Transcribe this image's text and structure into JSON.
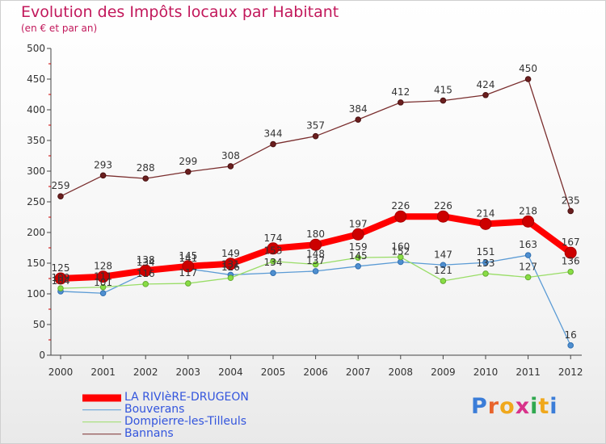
{
  "title": "Evolution des Impôts locaux par Habitant",
  "subtitle": "(en € et par an)",
  "logo": "Proxiti",
  "chart_data": {
    "type": "line",
    "title": "Evolution des Impôts locaux par Habitant",
    "subtitle": "(en € et par an)",
    "x": [
      2000,
      2001,
      2002,
      2003,
      2004,
      2005,
      2006,
      2007,
      2008,
      2009,
      2010,
      2011,
      2012
    ],
    "ylim": [
      0,
      500
    ],
    "yticks": [
      0,
      50,
      100,
      150,
      200,
      250,
      300,
      350,
      400,
      450,
      500
    ],
    "grid": false,
    "legend_position": "bottom-left",
    "series": [
      {
        "name": "LA RIVIèRE-DRUGEON",
        "color": "#ff0000",
        "values": [
          125,
          128,
          138,
          145,
          149,
          174,
          180,
          197,
          226,
          226,
          214,
          218,
          167
        ],
        "labels": [
          "125",
          "128",
          "138",
          "145",
          "149",
          "174",
          "180",
          "197",
          "226",
          "226",
          "214",
          "218",
          "167"
        ]
      },
      {
        "name": "Bouverans",
        "color": "#5b9bd5",
        "values": [
          104,
          101,
          134,
          141,
          131,
          134,
          137,
          145,
          152,
          147,
          151,
          163,
          16
        ],
        "labels": [
          "104",
          "101",
          "134",
          "141",
          "131",
          "134",
          "137",
          "145",
          "152",
          "147",
          "151",
          "163",
          "16"
        ]
      },
      {
        "name": "Dompierre-les-Tilleuls",
        "color": "#99dd66",
        "values": [
          109,
          111,
          116,
          117,
          126,
          153,
          148,
          159,
          160,
          121,
          133,
          127,
          136
        ],
        "labels": [
          "109",
          "111",
          "116",
          "117",
          "126",
          "153",
          "148",
          "159",
          "160",
          "121",
          "133",
          "127",
          "136"
        ]
      },
      {
        "name": "Bannans",
        "color": "#7a2e2e",
        "values": [
          259,
          293,
          288,
          299,
          308,
          344,
          357,
          384,
          412,
          415,
          424,
          450,
          235
        ],
        "labels": [
          "259",
          "293",
          "288",
          "299",
          "308",
          "344",
          "357",
          "384",
          "412",
          "415",
          "424",
          "450",
          "235"
        ]
      }
    ]
  }
}
